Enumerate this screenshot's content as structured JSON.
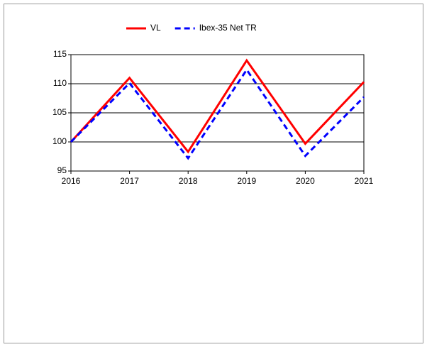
{
  "chart_data": {
    "type": "line",
    "x": [
      2016,
      2017,
      2018,
      2019,
      2020,
      2021
    ],
    "series": [
      {
        "name": "VL",
        "color": "#ff0000",
        "dash": false,
        "values": [
          100,
          111,
          98.3,
          114,
          99.7,
          110.3
        ]
      },
      {
        "name": "Ibex-35 Net TR",
        "color": "#0000ff",
        "dash": true,
        "values": [
          100,
          110.1,
          97.2,
          112.4,
          97.6,
          107.7
        ]
      }
    ],
    "xlim": [
      2016,
      2021
    ],
    "xticks": [
      2016,
      2017,
      2018,
      2019,
      2020,
      2021
    ],
    "ylim": [
      95,
      115
    ],
    "yticks": [
      95,
      100,
      105,
      110,
      115
    ],
    "grid": true
  }
}
